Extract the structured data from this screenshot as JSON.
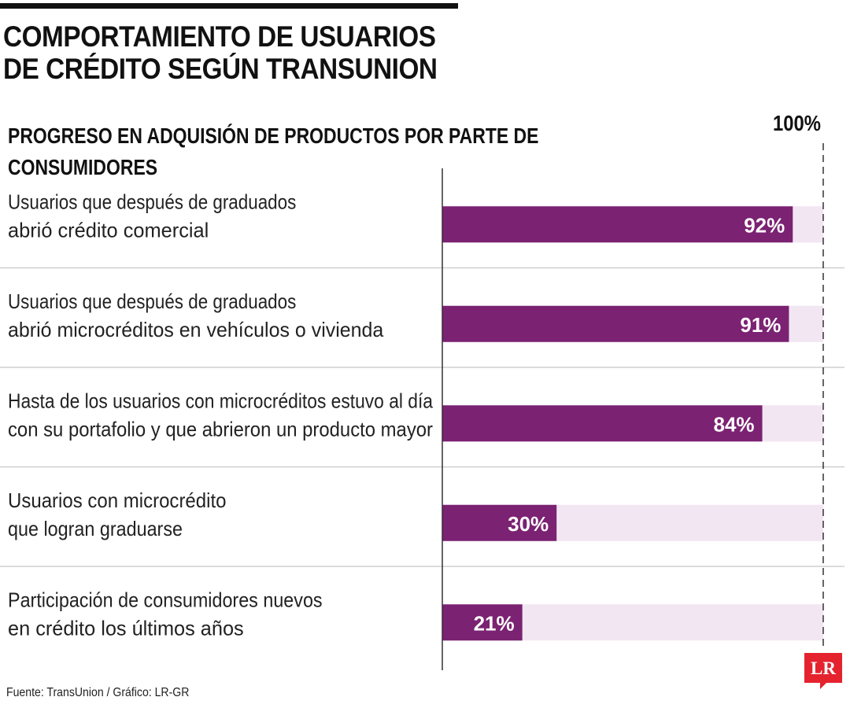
{
  "title_lines": [
    "COMPORTAMIENTO DE USUARIOS",
    "DE CRÉDITO SEGÚN TRANSUNION"
  ],
  "source": "Fuente: TransUnion / Gráfico: LR-GR",
  "logo_text": "LR",
  "colors": {
    "bar": "#7b2273",
    "track": "#f2e6f2",
    "divider": "#cfcfcf",
    "axis": "#333333",
    "logo": "#e4232e"
  },
  "chart_data": {
    "type": "bar",
    "orientation": "horizontal",
    "title": "PROGRESO EN ADQUISIÓN DE PRODUCTOS POR PARTE DE CONSUMIDORES",
    "reference_label": "100%",
    "xlim": [
      0,
      100
    ],
    "unit": "%",
    "categories": [
      [
        "Usuarios que después de graduados",
        "abrió crédito comercial"
      ],
      [
        "Usuarios que después de graduados",
        "abrió microcréditos en vehículos o vivienda"
      ],
      [
        "Hasta de los usuarios con microcréditos estuvo al día",
        "con su portafolio y que abrieron un producto mayor"
      ],
      [
        "Usuarios con microcrédito",
        "que logran graduarse"
      ],
      [
        "Participación de consumidores nuevos",
        "en crédito los últimos años"
      ]
    ],
    "values": [
      92,
      91,
      84,
      30,
      21
    ],
    "value_labels": [
      "92%",
      "91%",
      "84%",
      "30%",
      "21%"
    ]
  }
}
